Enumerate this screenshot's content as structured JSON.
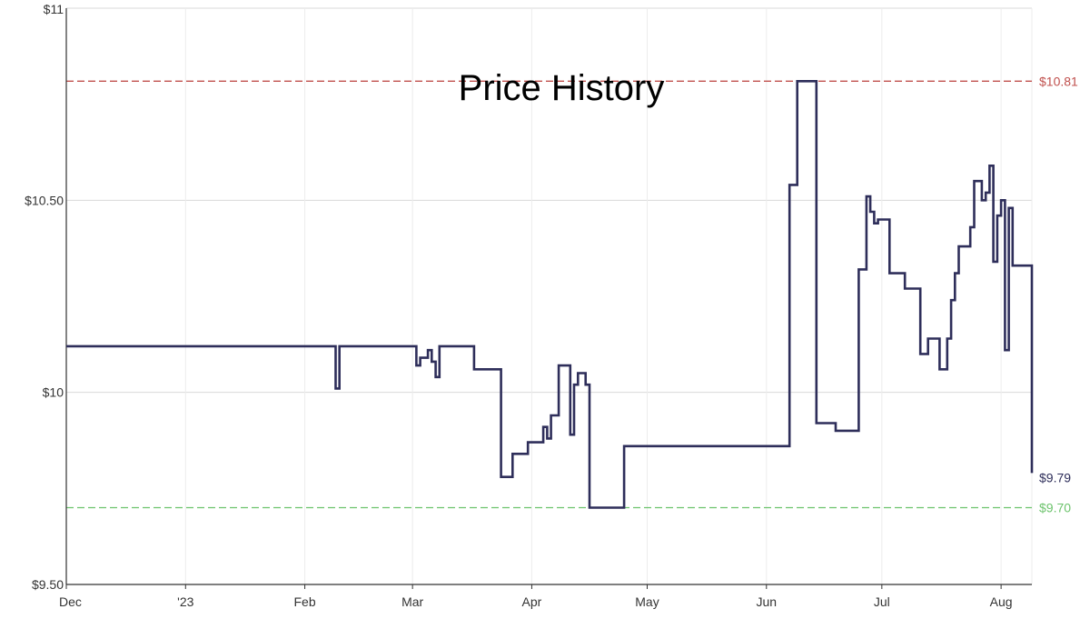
{
  "chart_data": {
    "type": "line",
    "title": "Price History",
    "xlabel": "",
    "ylabel": "",
    "grid": true,
    "x_axis_type": "date",
    "xlim": [
      "2022-12-01",
      "2023-08-09"
    ],
    "ylim": [
      9.5,
      11
    ],
    "y_ticks": [
      {
        "value": 11,
        "label": "$11"
      },
      {
        "value": 10.5,
        "label": "$10.50"
      },
      {
        "value": 10,
        "label": "$10"
      },
      {
        "value": 9.5,
        "label": "$9.50"
      }
    ],
    "x_ticks": [
      {
        "date": "2022-12-01",
        "label": "Dec"
      },
      {
        "date": "2023-01-01",
        "label": "'23"
      },
      {
        "date": "2023-02-01",
        "label": "Feb"
      },
      {
        "date": "2023-03-01",
        "label": "Mar"
      },
      {
        "date": "2023-04-01",
        "label": "Apr"
      },
      {
        "date": "2023-05-01",
        "label": "May"
      },
      {
        "date": "2023-06-01",
        "label": "Jun"
      },
      {
        "date": "2023-07-01",
        "label": "Jul"
      },
      {
        "date": "2023-08-01",
        "label": "Aug"
      }
    ],
    "reference_lines": [
      {
        "value": 10.81,
        "label": "$10.81",
        "color": "#c0504d"
      },
      {
        "value": 9.7,
        "label": "$9.70",
        "color": "#6cc36c"
      }
    ],
    "last_value": {
      "value": 9.79,
      "label": "$9.79"
    },
    "series_color": "#2e2e5a",
    "series": [
      {
        "step": true,
        "points": [
          [
            "2022-12-01",
            10.12
          ],
          [
            "2023-02-08",
            10.12
          ],
          [
            "2023-02-09",
            10.01
          ],
          [
            "2023-02-10",
            10.12
          ],
          [
            "2023-03-02",
            10.07
          ],
          [
            "2023-03-03",
            10.09
          ],
          [
            "2023-03-05",
            10.11
          ],
          [
            "2023-03-06",
            10.08
          ],
          [
            "2023-03-07",
            10.04
          ],
          [
            "2023-03-08",
            10.12
          ],
          [
            "2023-03-17",
            10.06
          ],
          [
            "2023-03-24",
            9.78
          ],
          [
            "2023-03-27",
            9.84
          ],
          [
            "2023-03-31",
            9.87
          ],
          [
            "2023-04-04",
            9.91
          ],
          [
            "2023-04-05",
            9.88
          ],
          [
            "2023-04-06",
            9.94
          ],
          [
            "2023-04-08",
            10.07
          ],
          [
            "2023-04-11",
            9.89
          ],
          [
            "2023-04-12",
            10.02
          ],
          [
            "2023-04-13",
            10.05
          ],
          [
            "2023-04-15",
            10.02
          ],
          [
            "2023-04-16",
            9.7
          ],
          [
            "2023-04-25",
            9.86
          ],
          [
            "2023-06-07",
            10.54
          ],
          [
            "2023-06-09",
            10.81
          ],
          [
            "2023-06-14",
            9.92
          ],
          [
            "2023-06-19",
            9.9
          ],
          [
            "2023-06-25",
            10.32
          ],
          [
            "2023-06-27",
            10.51
          ],
          [
            "2023-06-28",
            10.47
          ],
          [
            "2023-06-29",
            10.44
          ],
          [
            "2023-06-30",
            10.45
          ],
          [
            "2023-07-03",
            10.31
          ],
          [
            "2023-07-07",
            10.27
          ],
          [
            "2023-07-11",
            10.1
          ],
          [
            "2023-07-13",
            10.14
          ],
          [
            "2023-07-16",
            10.06
          ],
          [
            "2023-07-18",
            10.14
          ],
          [
            "2023-07-19",
            10.24
          ],
          [
            "2023-07-20",
            10.31
          ],
          [
            "2023-07-21",
            10.38
          ],
          [
            "2023-07-24",
            10.43
          ],
          [
            "2023-07-25",
            10.55
          ],
          [
            "2023-07-27",
            10.5
          ],
          [
            "2023-07-28",
            10.52
          ],
          [
            "2023-07-29",
            10.59
          ],
          [
            "2023-07-30",
            10.34
          ],
          [
            "2023-07-31",
            10.46
          ],
          [
            "2023-08-01",
            10.5
          ],
          [
            "2023-08-02",
            10.11
          ],
          [
            "2023-08-03",
            10.48
          ],
          [
            "2023-08-04",
            10.33
          ],
          [
            "2023-08-09",
            9.79
          ]
        ]
      }
    ]
  }
}
